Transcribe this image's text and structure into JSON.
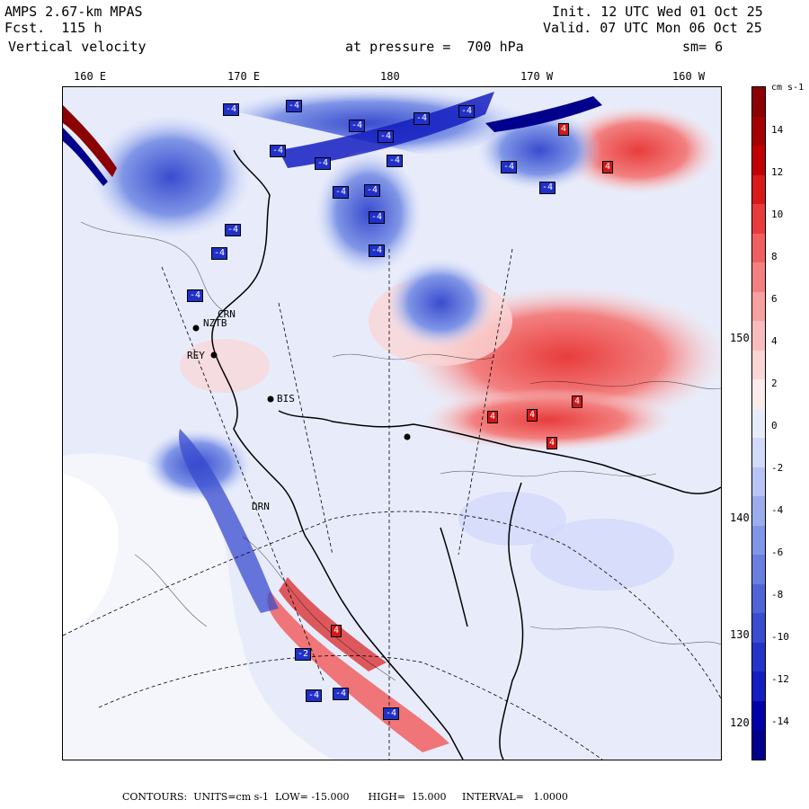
{
  "header": {
    "model": "AMPS 2.67-km MPAS",
    "forecast": "Fcst.  115 h",
    "field": "Vertical velocity",
    "level": "at pressure =  700 hPa",
    "init": "Init. 12 UTC Wed 01 Oct 25",
    "valid": "Valid. 07 UTC Mon 06 Oct 25",
    "smoothing": "sm= 6"
  },
  "longitude_labels": [
    "160 E",
    "170 E",
    "180",
    "170 W",
    "160 W"
  ],
  "latitude_labels": [
    "150 W",
    "140 W",
    "130 W",
    "120 W"
  ],
  "stations": [
    "BIS",
    "REY",
    "DRN",
    "NZTB",
    "CRN"
  ],
  "colorbar": {
    "unit": "cm s-1",
    "labels": [
      "14",
      "12",
      "10",
      "8",
      "6",
      "4",
      "2",
      "0",
      "-2",
      "-4",
      "-6",
      "-8",
      "-10",
      "-12",
      "-14"
    ],
    "colors": [
      "#8b0000",
      "#a50000",
      "#c00000",
      "#d81a1a",
      "#e83c3c",
      "#f06060",
      "#f38080",
      "#f6a0a0",
      "#f8bcbc",
      "#fad6d6",
      "#fcebeb",
      "#e8ecfa",
      "#d2dafa",
      "#b8c4f4",
      "#9caded",
      "#8096e6",
      "#6a7ede",
      "#5064d6",
      "#3a4ccf",
      "#2434c8",
      "#141ec0",
      "#0000aa",
      "#00008c"
    ],
    "neg_color": "#2030c8",
    "pos_color": "#d01818"
  },
  "footer": "CONTOURS:  UNITS=cm s-1  LOW= -15.000      HIGH=  15.000     INTERVAL=   1.0000"
}
